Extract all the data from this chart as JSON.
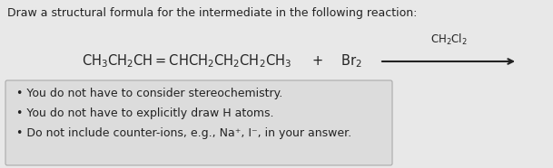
{
  "title": "Draw a structural formula for the intermediate in the following reaction:",
  "alkene": "CH$_3$CH$_2$CH$=$CHCH$_2$CH$_2$CH$_2$CH$_3$",
  "plus": "+",
  "reagent": "Br$_2$",
  "solvent": "CH$_2$Cl$_2$",
  "bullet_points": [
    "You do not have to consider stereochemistry.",
    "You do not have to explicitly draw H atoms.",
    "Do not include counter-ions, e.g., Na⁺, I⁻, in your answer."
  ],
  "background": "#e8e8e8",
  "box_background": "#dcdcdc",
  "text_color": "#222222",
  "title_fontsize": 9.0,
  "reaction_fontsize": 10.5,
  "solvent_fontsize": 8.5,
  "bullet_fontsize": 9.0
}
